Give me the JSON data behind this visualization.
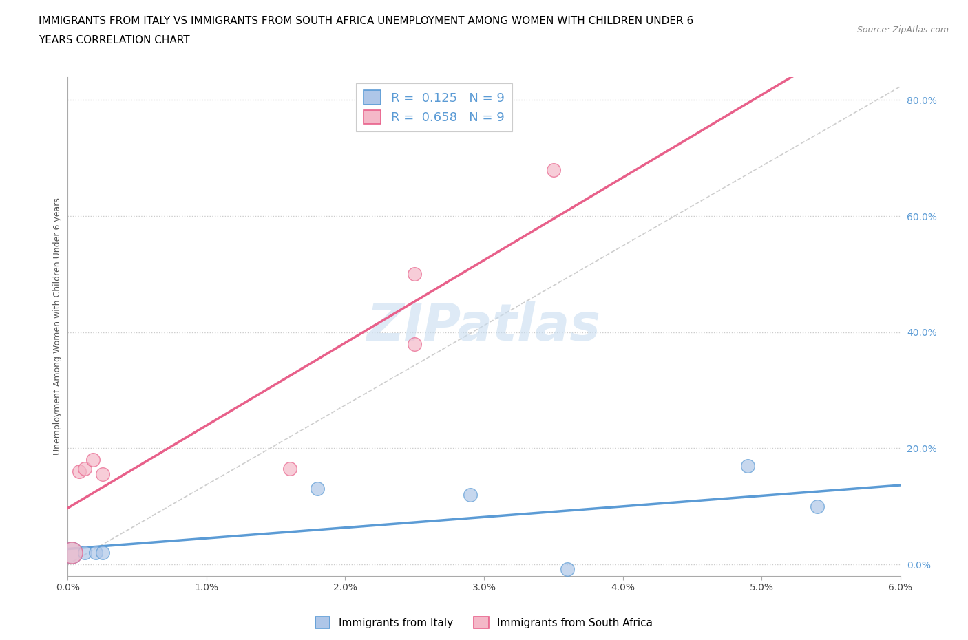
{
  "title_line1": "IMMIGRANTS FROM ITALY VS IMMIGRANTS FROM SOUTH AFRICA UNEMPLOYMENT AMONG WOMEN WITH CHILDREN UNDER 6",
  "title_line2": "YEARS CORRELATION CHART",
  "source": "Source: ZipAtlas.com",
  "ylabel": "Unemployment Among Women with Children Under 6 years",
  "xlim": [
    0.0,
    0.06
  ],
  "ylim": [
    -0.02,
    0.84
  ],
  "xticks": [
    0.0,
    0.01,
    0.02,
    0.03,
    0.04,
    0.05,
    0.06
  ],
  "xticklabels": [
    "0.0%",
    "1.0%",
    "2.0%",
    "3.0%",
    "4.0%",
    "5.0%",
    "6.0%"
  ],
  "yticks_right": [
    0.0,
    0.2,
    0.4,
    0.6,
    0.8
  ],
  "yticklabels_right": [
    "0.0%",
    "20.0%",
    "40.0%",
    "60.0%",
    "80.0%"
  ],
  "italy_x": [
    0.0003,
    0.0012,
    0.002,
    0.0025,
    0.018,
    0.029,
    0.036,
    0.049,
    0.054
  ],
  "italy_y": [
    0.02,
    0.02,
    0.02,
    0.02,
    0.13,
    0.12,
    -0.008,
    0.17,
    0.1
  ],
  "south_africa_x": [
    0.0003,
    0.0008,
    0.0012,
    0.0018,
    0.0025,
    0.016,
    0.025,
    0.025,
    0.035
  ],
  "south_africa_y": [
    0.02,
    0.16,
    0.165,
    0.18,
    0.155,
    0.165,
    0.38,
    0.5,
    0.68
  ],
  "italy_color": "#aec6e8",
  "south_africa_color": "#f4b8c8",
  "italy_line_color": "#5b9bd5",
  "south_africa_line_color": "#e8608a",
  "diagonal_color": "#c8c8c8",
  "R_italy": 0.125,
  "R_south_africa": 0.658,
  "N_italy": 9,
  "N_south_africa": 9,
  "legend_italy": "Immigrants from Italy",
  "legend_south_africa": "Immigrants from South Africa",
  "watermark": "ZIPatlas",
  "watermark_color": "#c8ddf0",
  "grid_color": "#cccccc",
  "title_fontsize": 11,
  "axis_label_fontsize": 9,
  "tick_fontsize": 10,
  "marker_size": 200,
  "marker_size_large": 500
}
